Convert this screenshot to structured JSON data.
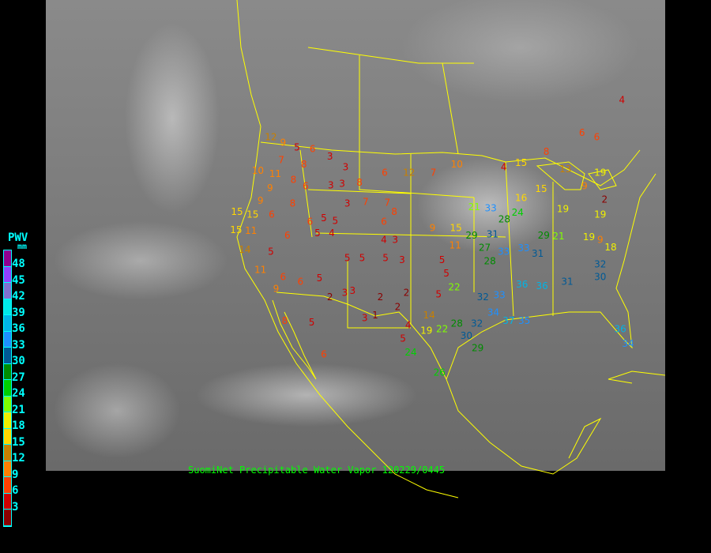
{
  "caption": "SuomiNet Precipitable Water Vapor 120229/0445",
  "legend": {
    "title": "PWV",
    "unit": "mm",
    "labels": [
      "48",
      "45",
      "42",
      "39",
      "36",
      "33",
      "30",
      "27",
      "24",
      "21",
      "18",
      "15",
      "12",
      "9",
      "6",
      "3"
    ],
    "colors": [
      "#900090",
      "#9040ff",
      "#8070d0",
      "#00e8e8",
      "#00b4e6",
      "#1e90ff",
      "#005a96",
      "#008c00",
      "#00d000",
      "#80ff00",
      "#f0f000",
      "#ffd700",
      "#c88000",
      "#ff8000",
      "#ff4000",
      "#d00000",
      "#8b0000"
    ]
  },
  "map_colors": {
    "background": "#000000",
    "boundaries": "#ffff00"
  },
  "stations": [
    {
      "lon": -121.1,
      "lat": 47.6,
      "v": 12
    },
    {
      "lon": -119.7,
      "lat": 47.0,
      "v": 9
    },
    {
      "lon": -118.1,
      "lat": 46.5,
      "v": 5
    },
    {
      "lon": -116.3,
      "lat": 46.3,
      "v": 6
    },
    {
      "lon": -114.3,
      "lat": 45.5,
      "v": 3
    },
    {
      "lon": -112.5,
      "lat": 44.3,
      "v": 3
    },
    {
      "lon": -119.9,
      "lat": 45.1,
      "v": 7
    },
    {
      "lon": -117.3,
      "lat": 44.6,
      "v": 8
    },
    {
      "lon": -122.6,
      "lat": 43.9,
      "v": 10
    },
    {
      "lon": -120.6,
      "lat": 43.9,
      "v": 11
    },
    {
      "lon": -118.5,
      "lat": 42.9,
      "v": 8
    },
    {
      "lon": -121.2,
      "lat": 42.6,
      "v": 9
    },
    {
      "lon": -117.1,
      "lat": 42.2,
      "v": 6
    },
    {
      "lon": -114.2,
      "lat": 42.3,
      "v": 3
    },
    {
      "lon": -112.9,
      "lat": 42.5,
      "v": 3
    },
    {
      "lon": -110.9,
      "lat": 42.6,
      "v": 8
    },
    {
      "lon": -108.0,
      "lat": 43.7,
      "v": 6
    },
    {
      "lon": -105.2,
      "lat": 43.7,
      "v": 12
    },
    {
      "lon": -102.4,
      "lat": 43.7,
      "v": 7
    },
    {
      "lon": -99.7,
      "lat": 44.6,
      "v": 10
    },
    {
      "lon": -94.3,
      "lat": 44.3,
      "v": 4
    },
    {
      "lon": -92.3,
      "lat": 44.8,
      "v": 15
    },
    {
      "lon": -89.4,
      "lat": 46.0,
      "v": 8
    },
    {
      "lon": -87.2,
      "lat": 44.1,
      "v": 13
    },
    {
      "lon": -85.3,
      "lat": 48.1,
      "v": 6
    },
    {
      "lon": -83.6,
      "lat": 47.6,
      "v": 6
    },
    {
      "lon": -80.7,
      "lat": 51.7,
      "v": 4
    },
    {
      "lon": -125.0,
      "lat": 39.4,
      "v": 15
    },
    {
      "lon": -123.2,
      "lat": 39.1,
      "v": 15
    },
    {
      "lon": -121.0,
      "lat": 39.1,
      "v": 6
    },
    {
      "lon": -122.3,
      "lat": 40.6,
      "v": 9
    },
    {
      "lon": -118.6,
      "lat": 40.3,
      "v": 8
    },
    {
      "lon": -116.6,
      "lat": 38.3,
      "v": 6
    },
    {
      "lon": -115.0,
      "lat": 38.7,
      "v": 5
    },
    {
      "lon": -113.7,
      "lat": 38.4,
      "v": 5
    },
    {
      "lon": -112.3,
      "lat": 40.3,
      "v": 3
    },
    {
      "lon": -110.2,
      "lat": 40.5,
      "v": 7
    },
    {
      "lon": -107.7,
      "lat": 40.4,
      "v": 7
    },
    {
      "lon": -106.9,
      "lat": 39.4,
      "v": 8
    },
    {
      "lon": -108.1,
      "lat": 38.3,
      "v": 6
    },
    {
      "lon": -106.8,
      "lat": 36.3,
      "v": 3
    },
    {
      "lon": -108.1,
      "lat": 36.3,
      "v": 4
    },
    {
      "lon": -114.1,
      "lat": 37.4,
      "v": 4
    },
    {
      "lon": -116.1,
      "lat": 37.4,
      "v": 5
    },
    {
      "lon": -119.2,
      "lat": 36.8,
      "v": 6
    },
    {
      "lon": -121.1,
      "lat": 35.0,
      "v": 5
    },
    {
      "lon": -125.1,
      "lat": 37.4,
      "v": 15
    },
    {
      "lon": -123.4,
      "lat": 37.3,
      "v": 11
    },
    {
      "lon": -124.1,
      "lat": 35.2,
      "v": 14
    },
    {
      "lon": -122.3,
      "lat": 33.0,
      "v": 11
    },
    {
      "lon": -119.7,
      "lat": 32.2,
      "v": 6
    },
    {
      "lon": -117.7,
      "lat": 31.7,
      "v": 6
    },
    {
      "lon": -115.5,
      "lat": 32.1,
      "v": 5
    },
    {
      "lon": -112.3,
      "lat": 34.3,
      "v": 5
    },
    {
      "lon": -110.6,
      "lat": 34.3,
      "v": 5
    },
    {
      "lon": -107.9,
      "lat": 34.3,
      "v": 5
    },
    {
      "lon": -106.0,
      "lat": 34.1,
      "v": 3
    },
    {
      "lon": -114.3,
      "lat": 30.0,
      "v": 2
    },
    {
      "lon": -112.6,
      "lat": 30.5,
      "v": 3
    },
    {
      "lon": -111.7,
      "lat": 30.7,
      "v": 3
    },
    {
      "lon": -108.5,
      "lat": 30.0,
      "v": 2
    },
    {
      "lon": -105.5,
      "lat": 30.5,
      "v": 2
    },
    {
      "lon": -106.5,
      "lat": 28.9,
      "v": 2
    },
    {
      "lon": -110.3,
      "lat": 27.7,
      "v": 3
    },
    {
      "lon": -109.1,
      "lat": 28.0,
      "v": 1
    },
    {
      "lon": -105.3,
      "lat": 26.9,
      "v": 4
    },
    {
      "lon": -105.9,
      "lat": 25.8,
      "v": 5
    },
    {
      "lon": -101.4,
      "lat": 34.1,
      "v": 5
    },
    {
      "lon": -99.9,
      "lat": 35.7,
      "v": 11
    },
    {
      "lon": -100.9,
      "lat": 32.6,
      "v": 5
    },
    {
      "lon": -101.8,
      "lat": 30.3,
      "v": 5
    },
    {
      "lon": -102.5,
      "lat": 37.6,
      "v": 9
    },
    {
      "lon": -99.8,
      "lat": 37.6,
      "v": 15
    },
    {
      "lon": -98.0,
      "lat": 36.8,
      "v": 29
    },
    {
      "lon": -95.6,
      "lat": 36.9,
      "v": 31
    },
    {
      "lon": -96.5,
      "lat": 35.8,
      "v": 27
    },
    {
      "lon": -95.9,
      "lat": 34.3,
      "v": 28
    },
    {
      "lon": -94.3,
      "lat": 35.0,
      "v": 33
    },
    {
      "lon": -92.0,
      "lat": 35.4,
      "v": 33
    },
    {
      "lon": -90.4,
      "lat": 34.8,
      "v": 31
    },
    {
      "lon": -89.7,
      "lat": 36.8,
      "v": 29
    },
    {
      "lon": -88.0,
      "lat": 36.7,
      "v": 21
    },
    {
      "lon": -84.5,
      "lat": 36.6,
      "v": 19
    },
    {
      "lon": -83.2,
      "lat": 36.3,
      "v": 9
    },
    {
      "lon": -82.0,
      "lat": 35.5,
      "v": 18
    },
    {
      "lon": -83.2,
      "lat": 39.1,
      "v": 19
    },
    {
      "lon": -87.5,
      "lat": 39.7,
      "v": 19
    },
    {
      "lon": -90.0,
      "lat": 41.9,
      "v": 15
    },
    {
      "lon": -92.3,
      "lat": 40.9,
      "v": 16
    },
    {
      "lon": -95.8,
      "lat": 39.8,
      "v": 33
    },
    {
      "lon": -97.7,
      "lat": 39.9,
      "v": 21
    },
    {
      "lon": -94.6,
      "lat": 38.2,
      "v": 28
    },
    {
      "lon": -92.7,
      "lat": 39.3,
      "v": 24
    },
    {
      "lon": -100.0,
      "lat": 31.1,
      "v": 22
    },
    {
      "lon": -96.7,
      "lat": 30.0,
      "v": 32
    },
    {
      "lon": -94.8,
      "lat": 30.2,
      "v": 33
    },
    {
      "lon": -92.2,
      "lat": 31.4,
      "v": 36
    },
    {
      "lon": -89.9,
      "lat": 31.2,
      "v": 36
    },
    {
      "lon": -87.0,
      "lat": 31.7,
      "v": 31
    },
    {
      "lon": -95.5,
      "lat": 28.3,
      "v": 34
    },
    {
      "lon": -97.4,
      "lat": 27.1,
      "v": 32
    },
    {
      "lon": -99.7,
      "lat": 27.1,
      "v": 28
    },
    {
      "lon": -101.4,
      "lat": 26.5,
      "v": 22
    },
    {
      "lon": -102.9,
      "lat": 28.0,
      "v": 14
    },
    {
      "lon": -103.2,
      "lat": 26.3,
      "v": 19
    },
    {
      "lon": -98.6,
      "lat": 26.1,
      "v": 30
    },
    {
      "lon": -94.1,
      "lat": 27.4,
      "v": 37
    },
    {
      "lon": -92.3,
      "lat": 27.4,
      "v": 35
    },
    {
      "lon": -105.0,
      "lat": 23.9,
      "v": 24
    },
    {
      "lon": -101.7,
      "lat": 21.7,
      "v": 26
    },
    {
      "lon": -97.3,
      "lat": 24.4,
      "v": 29
    },
    {
      "lon": -83.2,
      "lat": 32.2,
      "v": 30
    },
    {
      "lon": -80.9,
      "lat": 26.5,
      "v": 36
    },
    {
      "lon": -80.0,
      "lat": 25.2,
      "v": 34
    },
    {
      "lon": -83.2,
      "lat": 33.0,
      "v": 32
    },
    {
      "lon": -115.0,
      "lat": 23.7,
      "v": 6
    },
    {
      "lon": -116.4,
      "lat": 27.2,
      "v": 5
    },
    {
      "lon": -119.5,
      "lat": 27.4,
      "v": 8
    },
    {
      "lon": -120.5,
      "lat": 30.9,
      "v": 9
    },
    {
      "lon": -85.0,
      "lat": 42.2,
      "v": 9
    },
    {
      "lon": -82.7,
      "lat": 40.4,
      "v": 2
    },
    {
      "lon": -83.2,
      "lat": 43.7,
      "v": 19
    }
  ]
}
